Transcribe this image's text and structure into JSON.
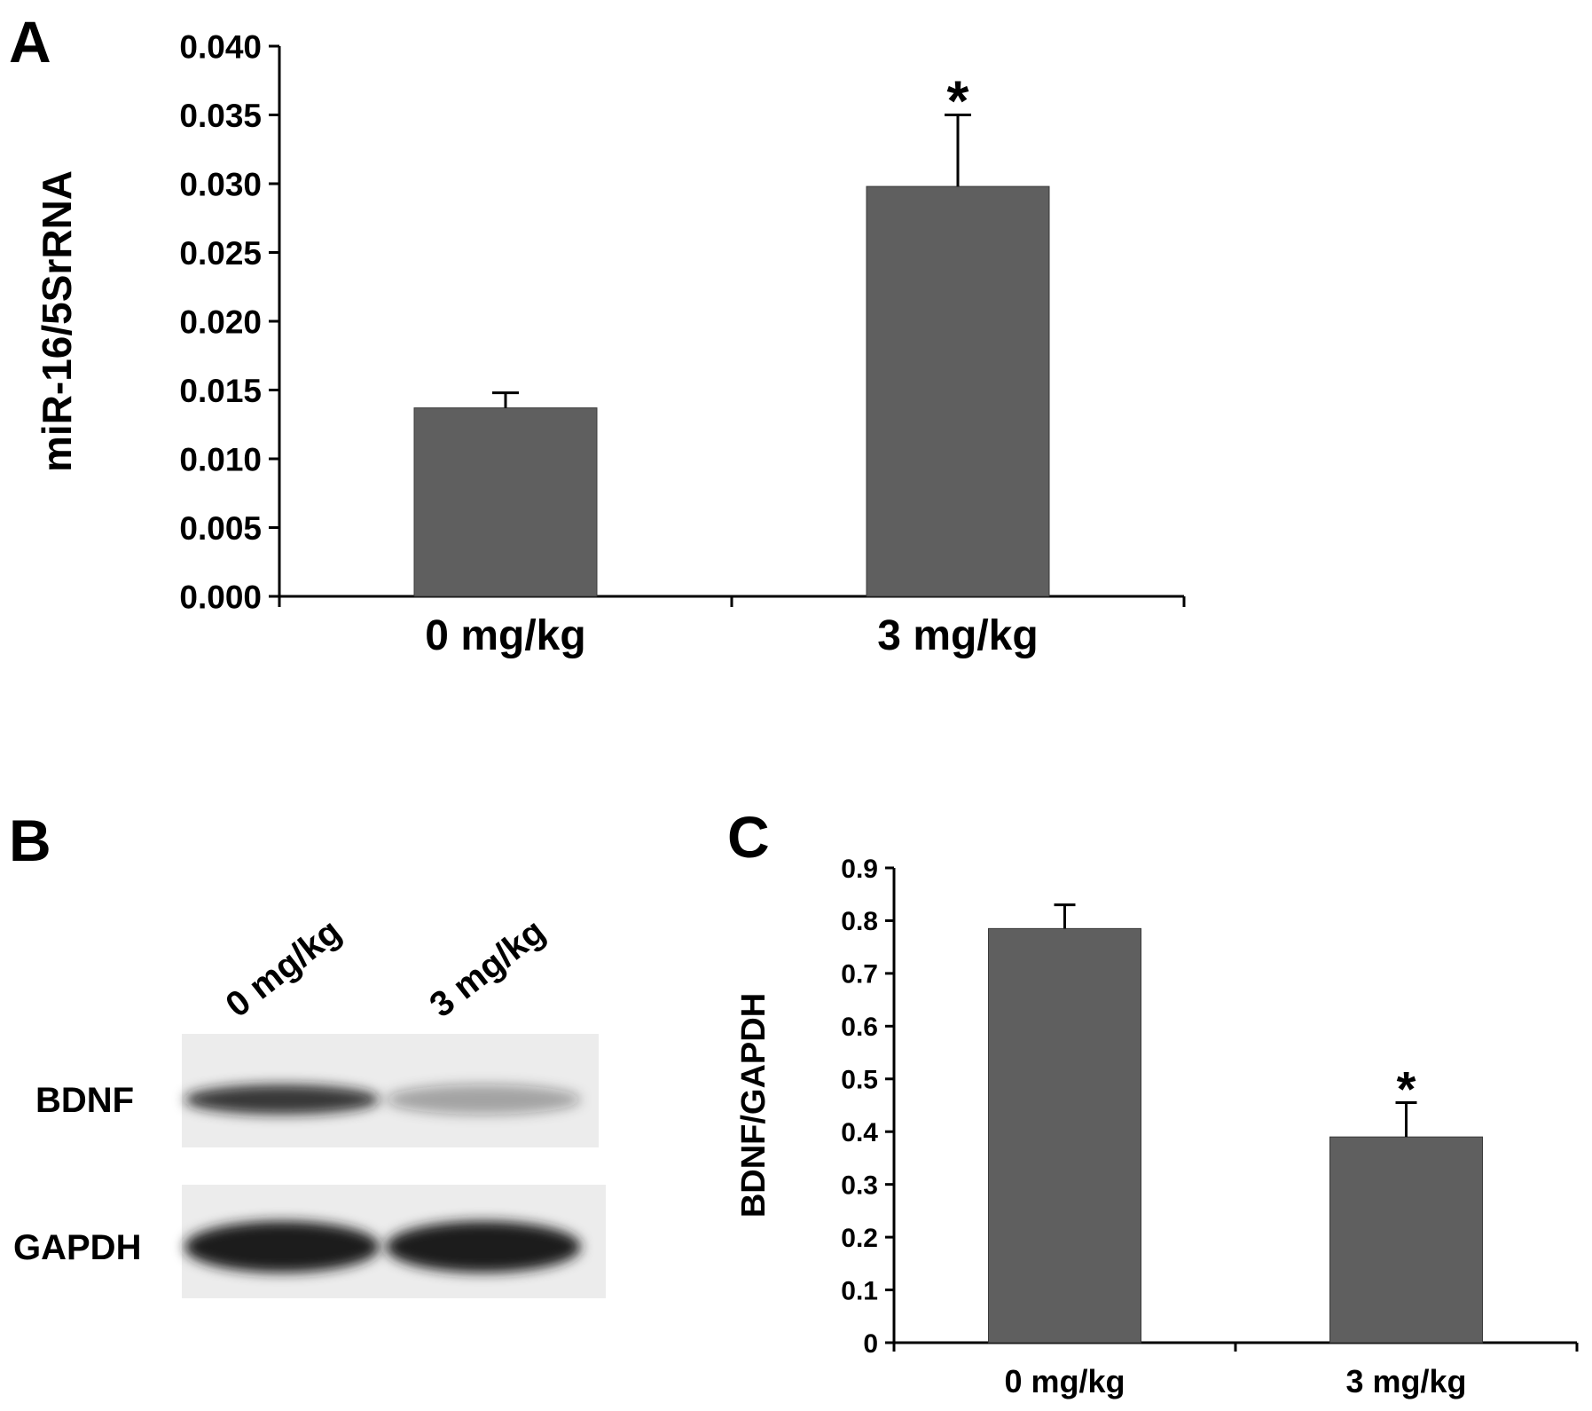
{
  "panels": {
    "A": "A",
    "B": "B",
    "C": "C"
  },
  "colors": {
    "bar": "#5f5f5f",
    "axis": "#000000",
    "blot_bg": "#ececec",
    "band": "#1a1a1a"
  },
  "chart_data": [
    {
      "panel": "A",
      "type": "bar",
      "categories": [
        "0 mg/kg",
        "3 mg/kg"
      ],
      "values": [
        0.0137,
        0.0298
      ],
      "errors": [
        0.0011,
        0.0052
      ],
      "significance": [
        "",
        "*"
      ],
      "ylabel": "miR-16/5SrRNA",
      "ylim": [
        0,
        0.04
      ],
      "yticks": [
        "0.000",
        "0.005",
        "0.010",
        "0.015",
        "0.020",
        "0.025",
        "0.030",
        "0.035",
        "0.040"
      ],
      "grid": false
    },
    {
      "panel": "C",
      "type": "bar",
      "categories": [
        "0 mg/kg",
        "3 mg/kg"
      ],
      "values": [
        0.785,
        0.39
      ],
      "errors": [
        0.045,
        0.065
      ],
      "significance": [
        "",
        "*"
      ],
      "ylabel": "BDNF/GAPDH",
      "ylim": [
        0,
        0.9
      ],
      "yticks": [
        "0",
        "0.1",
        "0.2",
        "0.3",
        "0.4",
        "0.5",
        "0.6",
        "0.7",
        "0.8",
        "0.9"
      ],
      "grid": false
    }
  ],
  "blot": {
    "lanes": [
      "0 mg/kg",
      "3 mg/kg"
    ],
    "rows": [
      {
        "name": "BDNF",
        "intensities": [
          0.85,
          0.35
        ]
      },
      {
        "name": "GAPDH",
        "intensities": [
          1.0,
          1.0
        ]
      }
    ]
  }
}
